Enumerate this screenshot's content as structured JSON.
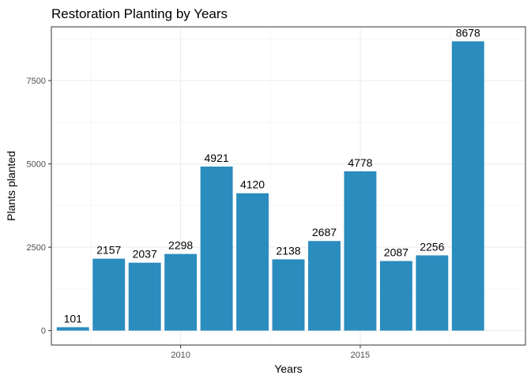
{
  "chart_data": {
    "type": "bar",
    "title": "Restoration Planting by Years",
    "xlabel": "Years",
    "ylabel": "Plants planted",
    "x": [
      2007,
      2008,
      2009,
      2010,
      2011,
      2012,
      2013,
      2014,
      2015,
      2016,
      2017,
      2018
    ],
    "values": [
      101,
      2157,
      2037,
      2298,
      4921,
      4120,
      2138,
      2687,
      4778,
      2087,
      2256,
      8678
    ],
    "value_labels": [
      "101",
      "2157",
      "2037",
      "2298",
      "4921",
      "4120",
      "2138",
      "2687",
      "4778",
      "2087",
      "2256",
      "8678"
    ],
    "xlim": [
      2006.4,
      2019.6
    ],
    "ylim": [
      -434,
      9112
    ],
    "x_ticks": [
      2010,
      2015
    ],
    "x_tick_labels": [
      "2010",
      "2015"
    ],
    "y_ticks": [
      0,
      2500,
      5000,
      7500
    ],
    "y_tick_labels": [
      "0",
      "2500",
      "5000",
      "7500"
    ],
    "grid": true,
    "legend": "none",
    "bar_color": "#2b8cbe"
  }
}
